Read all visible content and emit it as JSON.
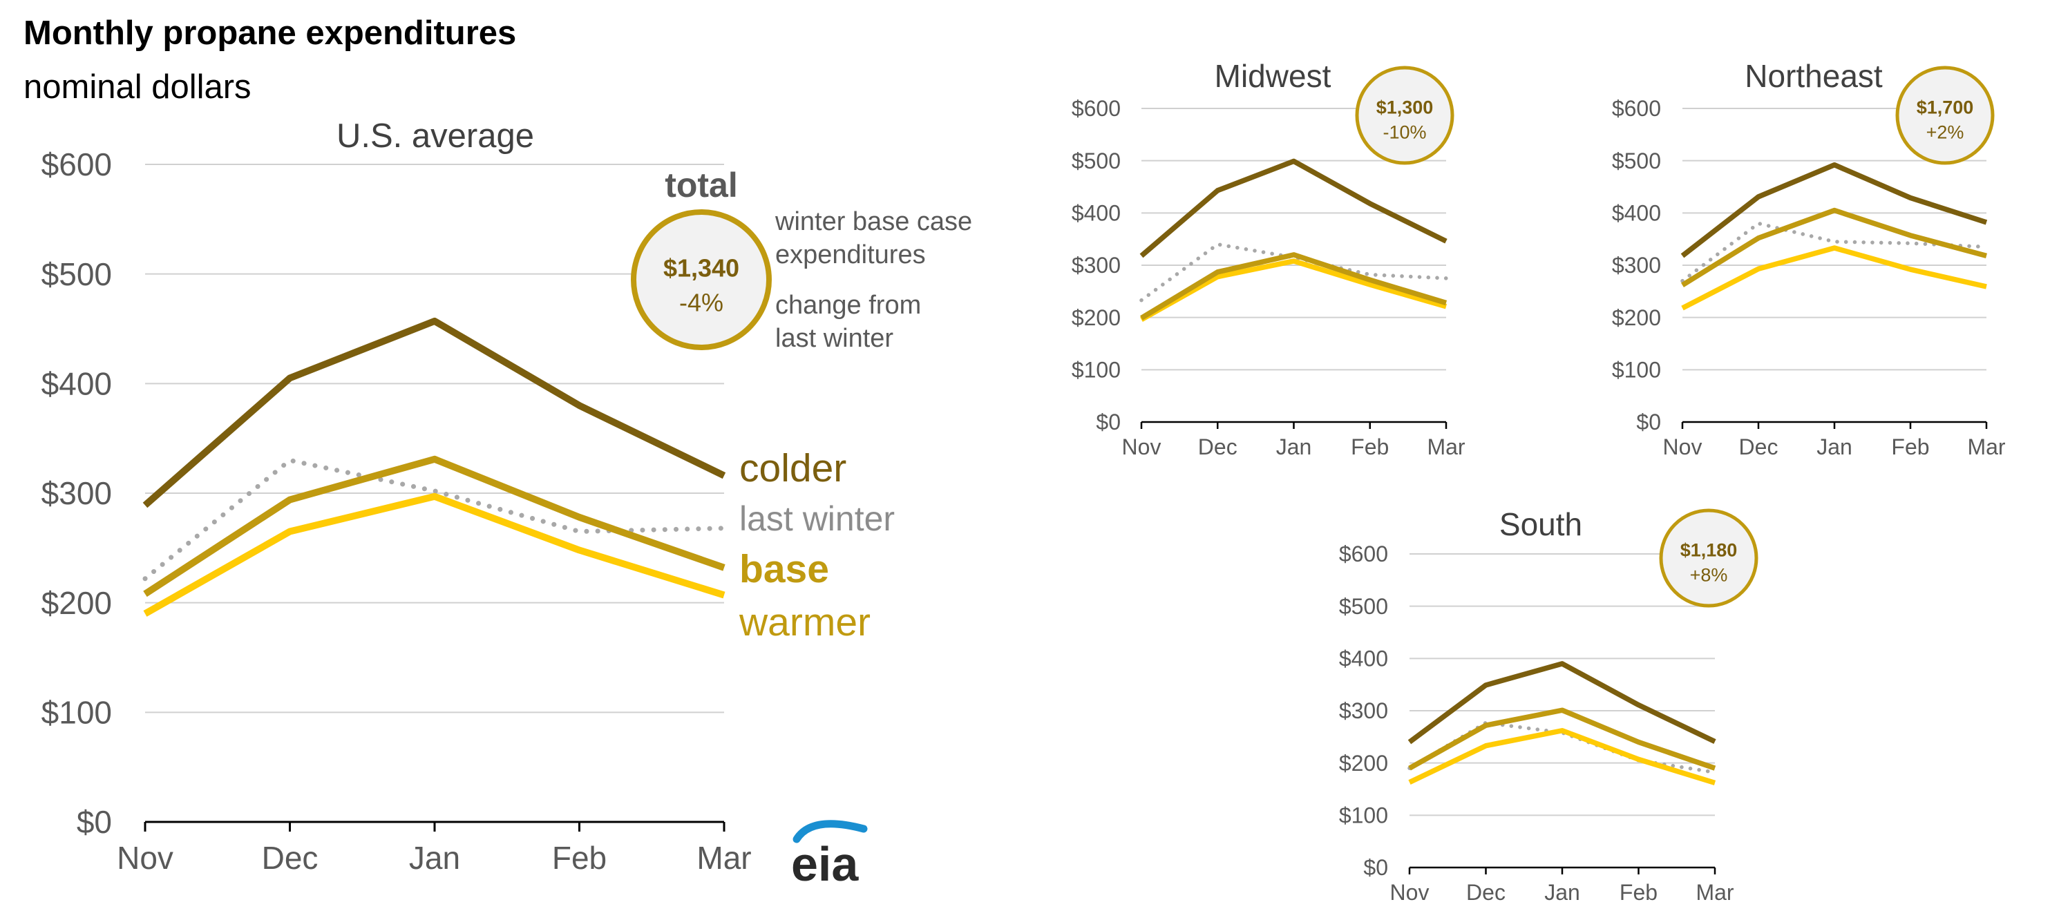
{
  "header": {
    "title": "Monthly propane expenditures",
    "subtitle": "nominal dollars"
  },
  "legend": {
    "total_label": "total",
    "annotation_1": [
      "winter base case",
      "expenditures"
    ],
    "annotation_2": [
      "change from",
      "last winter"
    ],
    "series_labels": [
      "colder",
      "last winter",
      "base",
      "warmer"
    ]
  },
  "logo": {
    "text": "eia"
  },
  "colors": {
    "colder": "#7B5E0E",
    "base": "#C09A10",
    "warmer": "#FFCB05",
    "last_winter": "#A8A8A8",
    "circle_stroke": "#C09A10",
    "circle_fill": "#F2F2F2",
    "circle_text": "#7B5E0E",
    "grid": "#D0D0D0",
    "axis_text": "#595959",
    "logo_blue": "#1A8FD1"
  },
  "chart_data": [
    {
      "type": "line",
      "title": "U.S. average",
      "categories": [
        "Nov",
        "Dec",
        "Jan",
        "Feb",
        "Mar"
      ],
      "ylim": [
        0,
        600
      ],
      "yticks": [
        "$0",
        "$100",
        "$200",
        "$300",
        "$400",
        "$500",
        "$600"
      ],
      "total": "$1,340",
      "change": "-4%",
      "series": [
        {
          "name": "colder",
          "values": [
            289,
            405,
            457,
            380,
            316
          ]
        },
        {
          "name": "last winter",
          "values": [
            222,
            330,
            302,
            265,
            268
          ]
        },
        {
          "name": "base",
          "values": [
            208,
            294,
            331,
            278,
            232
          ]
        },
        {
          "name": "warmer",
          "values": [
            190,
            265,
            297,
            248,
            207
          ]
        }
      ]
    },
    {
      "type": "line",
      "title": "Midwest",
      "categories": [
        "Nov",
        "Dec",
        "Jan",
        "Feb",
        "Mar"
      ],
      "ylim": [
        0,
        600
      ],
      "yticks": [
        "$0",
        "$100",
        "$200",
        "$300",
        "$400",
        "$500",
        "$600"
      ],
      "total": "$1,300",
      "change": "-10%",
      "series": [
        {
          "name": "colder",
          "values": [
            318,
            443,
            499,
            418,
            346
          ]
        },
        {
          "name": "last winter",
          "values": [
            233,
            340,
            315,
            282,
            275
          ]
        },
        {
          "name": "base",
          "values": [
            199,
            287,
            320,
            272,
            228
          ]
        },
        {
          "name": "warmer",
          "values": [
            196,
            278,
            308,
            263,
            221
          ]
        }
      ]
    },
    {
      "type": "line",
      "title": "Northeast",
      "categories": [
        "Nov",
        "Dec",
        "Jan",
        "Feb",
        "Mar"
      ],
      "ylim": [
        0,
        600
      ],
      "yticks": [
        "$0",
        "$100",
        "$200",
        "$300",
        "$400",
        "$500",
        "$600"
      ],
      "total": "$1,700",
      "change": "+2%",
      "series": [
        {
          "name": "colder",
          "values": [
            318,
            431,
            492,
            429,
            382
          ]
        },
        {
          "name": "last winter",
          "values": [
            270,
            380,
            345,
            342,
            335
          ]
        },
        {
          "name": "base",
          "values": [
            262,
            352,
            405,
            357,
            318
          ]
        },
        {
          "name": "warmer",
          "values": [
            218,
            293,
            333,
            292,
            259
          ]
        }
      ]
    },
    {
      "type": "line",
      "title": "South",
      "categories": [
        "Nov",
        "Dec",
        "Jan",
        "Feb",
        "Mar"
      ],
      "ylim": [
        0,
        600
      ],
      "yticks": [
        "$0",
        "$100",
        "$200",
        "$300",
        "$400",
        "$500",
        "$600"
      ],
      "total": "$1,180",
      "change": "+8%",
      "series": [
        {
          "name": "colder",
          "values": [
            240,
            349,
            390,
            311,
            241
          ]
        },
        {
          "name": "last winter",
          "values": [
            190,
            277,
            258,
            205,
            182
          ]
        },
        {
          "name": "base",
          "values": [
            190,
            272,
            301,
            240,
            190
          ]
        },
        {
          "name": "warmer",
          "values": [
            163,
            233,
            262,
            207,
            162
          ]
        }
      ]
    }
  ]
}
